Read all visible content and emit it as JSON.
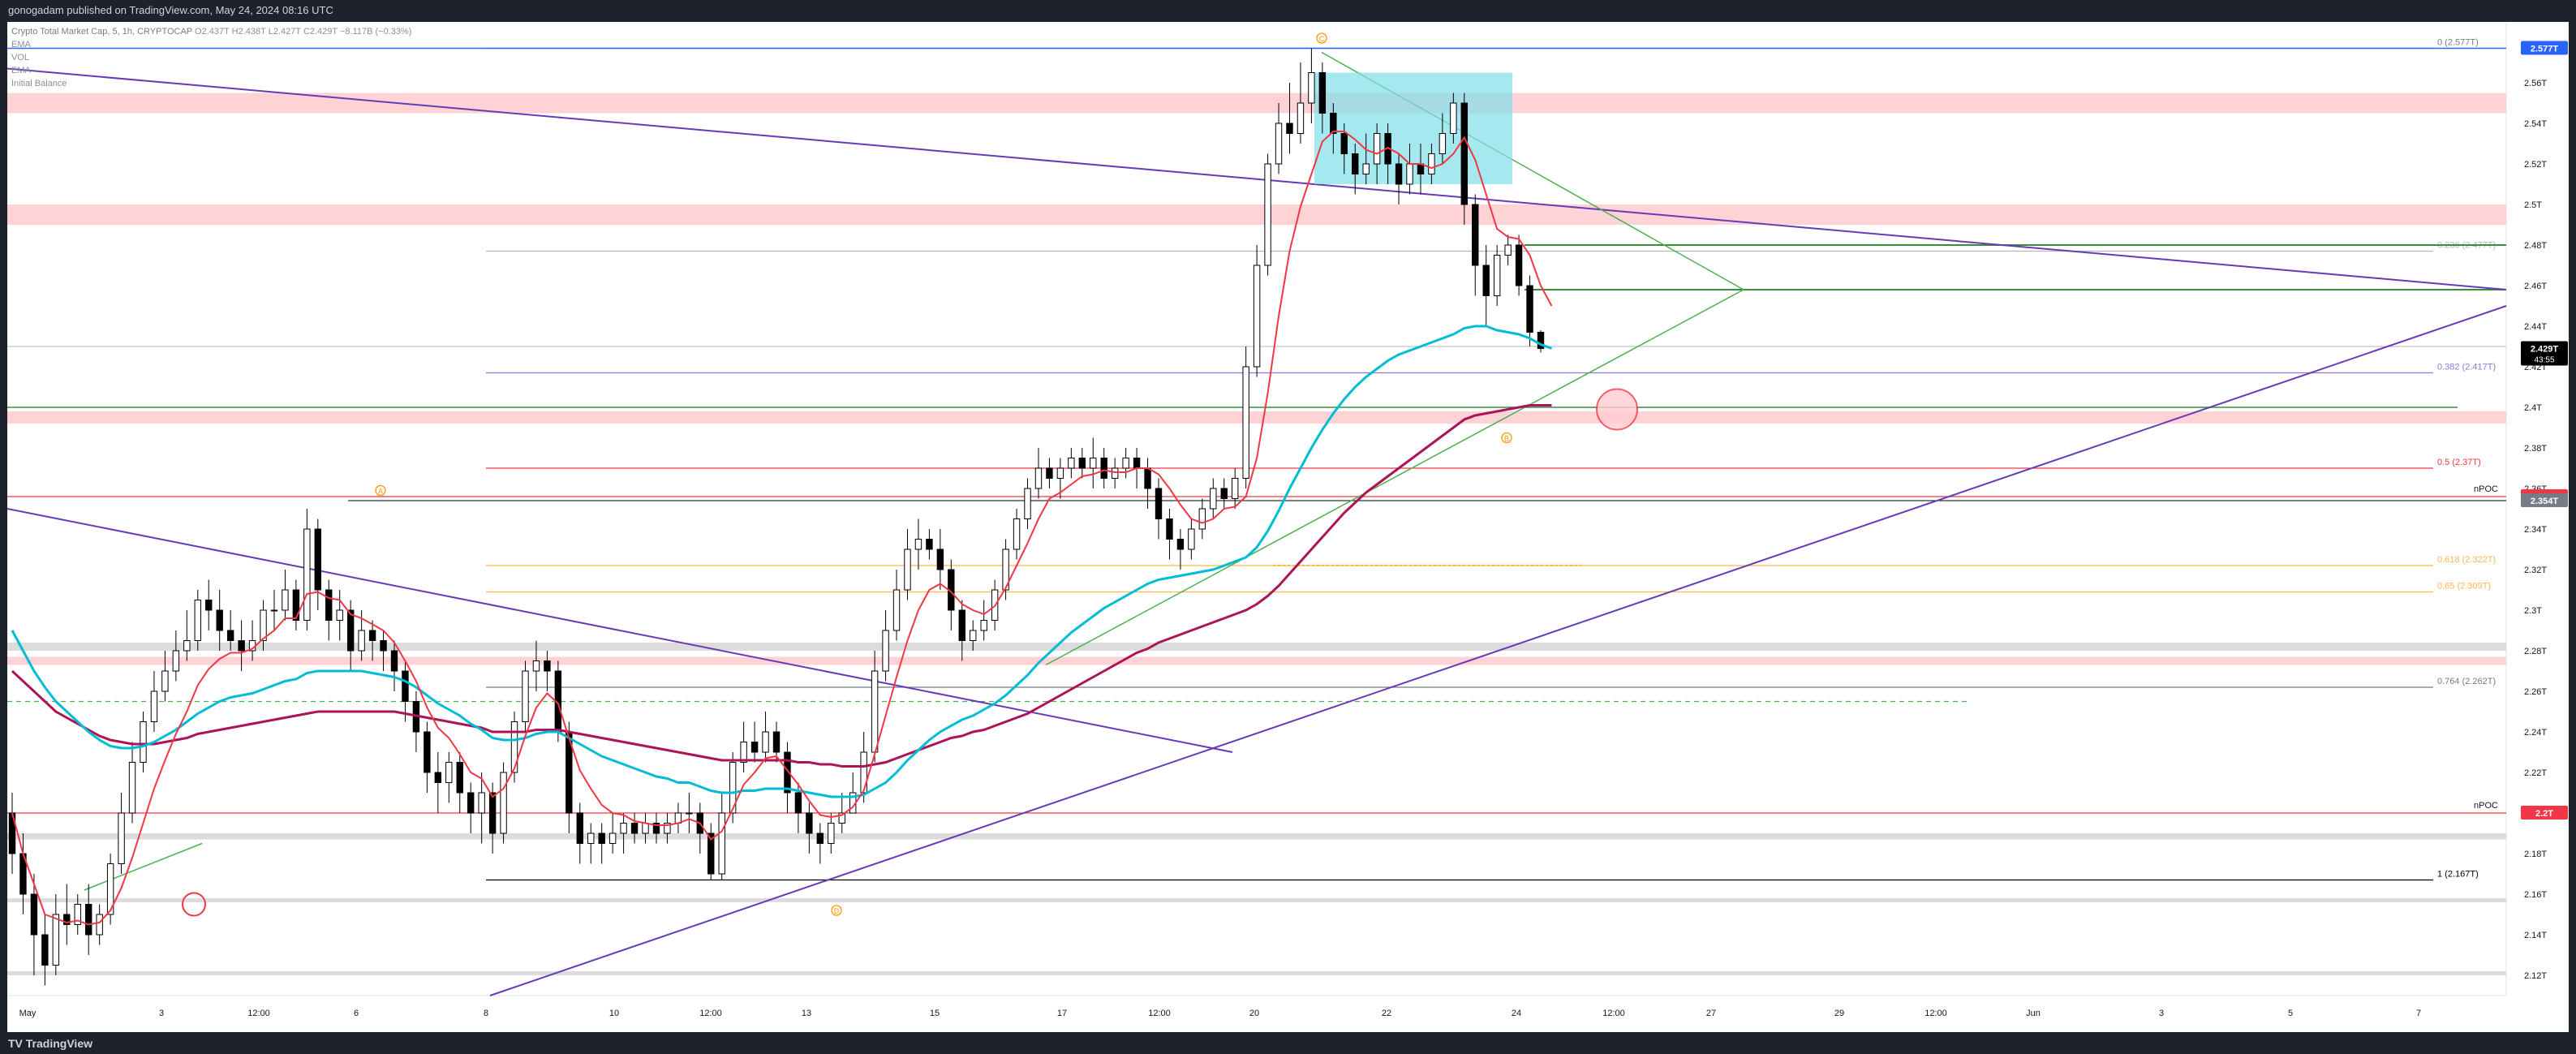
{
  "header": {
    "publish_text": "gonogadam published on TradingView.com, May 24, 2024 08:16 UTC"
  },
  "footer": {
    "brand": "TradingView"
  },
  "legend": {
    "symbol": "Crypto Total Market Cap, 5, 1h, CRYPTOCAP",
    "ohlc": "O2.437T  H2.438T  L2.427T  C2.429T  −8.117B (−0.33%)",
    "indicators": [
      "EMA",
      "VOL",
      "EMA",
      "EMA",
      "Initial Balance"
    ]
  },
  "colors": {
    "up": "#ffffff",
    "down": "#000000",
    "ema_fast": "#f23645",
    "ema_mid": "#00bcd4",
    "ema_slow": "#ad1457",
    "trendline": "#673ab7",
    "channel": "#4caf50",
    "zone_red": "#ffcdd2",
    "zone_grey": "#dcdcdc",
    "box_cyan": "#80deea"
  },
  "chart_data": {
    "type": "candlestick",
    "ylim": [
      2.11,
      2.59
    ],
    "x_ticks": [
      "May",
      "3",
      "12:00",
      "6",
      "8",
      "10",
      "12:00",
      "13",
      "15",
      "17",
      "12:00",
      "20",
      "22",
      "24",
      "12:00",
      "27",
      "29",
      "12:00",
      "Jun",
      "3",
      "5",
      "7"
    ],
    "y_ticks": [
      "2.56T",
      "2.54T",
      "2.52T",
      "2.5T",
      "2.48T",
      "2.46T",
      "2.44T",
      "2.42T",
      "2.4T",
      "2.38T",
      "2.36T",
      "2.34T",
      "2.32T",
      "2.3T",
      "2.28T",
      "2.26T",
      "2.24T",
      "2.22T",
      "2.2T",
      "2.18T",
      "2.16T",
      "2.14T",
      "2.12T"
    ],
    "price_tags": [
      {
        "label": "2.577T",
        "value": 2.577,
        "color": "#2962ff"
      },
      {
        "label": "2.429T",
        "value": 2.429,
        "color": "#000000",
        "sub": "43:55"
      },
      {
        "label": "2.356T",
        "value": 2.356,
        "color": "#f23645"
      },
      {
        "label": "2.354T",
        "value": 2.354,
        "color": "#787b86"
      },
      {
        "label": "2.2T",
        "value": 2.2,
        "color": "#f23645"
      }
    ],
    "fib_levels": [
      {
        "label": "0 (2.577T)",
        "value": 2.577,
        "color": "#787b86"
      },
      {
        "label": "0.236 (2.477T)",
        "value": 2.477,
        "color": "#b2b5be"
      },
      {
        "label": "0.382 (2.417T)",
        "value": 2.417,
        "color": "#9575cd"
      },
      {
        "label": "0.5 (2.37T)",
        "value": 2.37,
        "color": "#f23645"
      },
      {
        "label": "0.618 (2.322T)",
        "value": 2.322,
        "color": "#ffb74d"
      },
      {
        "label": "0.65 (2.309T)",
        "value": 2.309,
        "color": "#ffb74d"
      },
      {
        "label": "0.764 (2.262T)",
        "value": 2.262,
        "color": "#787b86"
      },
      {
        "label": "1 (2.167T)",
        "value": 2.167,
        "color": "#000000"
      }
    ],
    "npoc": [
      {
        "label": "nPOC",
        "value": 2.356
      },
      {
        "label": "nPOC",
        "value": 2.2
      }
    ],
    "zones_red": [
      [
        2.545,
        2.555
      ],
      [
        2.49,
        2.5
      ],
      [
        2.392,
        2.398
      ],
      [
        2.273,
        2.277
      ]
    ],
    "zones_grey": [
      [
        2.28,
        2.284
      ],
      [
        2.187,
        2.19
      ],
      [
        2.156,
        2.158
      ],
      [
        2.12,
        2.122
      ]
    ],
    "wave_labels": [
      "C",
      "A",
      "B",
      "D"
    ],
    "candles": [
      [
        2.2,
        2.18,
        2.21,
        2.17
      ],
      [
        2.18,
        2.16,
        2.19,
        2.15
      ],
      [
        2.16,
        2.14,
        2.17,
        2.12
      ],
      [
        2.14,
        2.125,
        2.15,
        2.115
      ],
      [
        2.125,
        2.15,
        2.16,
        2.12
      ],
      [
        2.15,
        2.145,
        2.165,
        2.135
      ],
      [
        2.145,
        2.155,
        2.16,
        2.14
      ],
      [
        2.155,
        2.14,
        2.165,
        2.13
      ],
      [
        2.14,
        2.15,
        2.155,
        2.135
      ],
      [
        2.15,
        2.175,
        2.18,
        2.145
      ],
      [
        2.175,
        2.2,
        2.21,
        2.17
      ],
      [
        2.2,
        2.225,
        2.235,
        2.195
      ],
      [
        2.225,
        2.245,
        2.25,
        2.22
      ],
      [
        2.245,
        2.26,
        2.27,
        2.24
      ],
      [
        2.26,
        2.27,
        2.28,
        2.255
      ],
      [
        2.27,
        2.28,
        2.29,
        2.265
      ],
      [
        2.28,
        2.285,
        2.3,
        2.275
      ],
      [
        2.285,
        2.305,
        2.31,
        2.28
      ],
      [
        2.305,
        2.3,
        2.315,
        2.29
      ],
      [
        2.3,
        2.29,
        2.31,
        2.28
      ],
      [
        2.29,
        2.285,
        2.3,
        2.28
      ],
      [
        2.285,
        2.28,
        2.295,
        2.27
      ],
      [
        2.28,
        2.285,
        2.295,
        2.275
      ],
      [
        2.285,
        2.3,
        2.305,
        2.28
      ],
      [
        2.3,
        2.3,
        2.31,
        2.29
      ],
      [
        2.3,
        2.31,
        2.32,
        2.295
      ],
      [
        2.31,
        2.295,
        2.315,
        2.29
      ],
      [
        2.295,
        2.34,
        2.35,
        2.29
      ],
      [
        2.34,
        2.31,
        2.345,
        2.3
      ],
      [
        2.31,
        2.295,
        2.315,
        2.285
      ],
      [
        2.295,
        2.3,
        2.31,
        2.285
      ],
      [
        2.3,
        2.28,
        2.305,
        2.27
      ],
      [
        2.28,
        2.29,
        2.3,
        2.275
      ],
      [
        2.29,
        2.285,
        2.295,
        2.275
      ],
      [
        2.285,
        2.28,
        2.29,
        2.27
      ],
      [
        2.28,
        2.27,
        2.285,
        2.26
      ],
      [
        2.27,
        2.255,
        2.275,
        2.245
      ],
      [
        2.255,
        2.24,
        2.26,
        2.23
      ],
      [
        2.24,
        2.22,
        2.245,
        2.21
      ],
      [
        2.22,
        2.215,
        2.23,
        2.2
      ],
      [
        2.215,
        2.225,
        2.23,
        2.205
      ],
      [
        2.225,
        2.21,
        2.23,
        2.2
      ],
      [
        2.21,
        2.2,
        2.215,
        2.19
      ],
      [
        2.2,
        2.21,
        2.22,
        2.185
      ],
      [
        2.21,
        2.19,
        2.215,
        2.18
      ],
      [
        2.19,
        2.22,
        2.225,
        2.185
      ],
      [
        2.22,
        2.245,
        2.25,
        2.215
      ],
      [
        2.245,
        2.27,
        2.275,
        2.24
      ],
      [
        2.27,
        2.275,
        2.285,
        2.26
      ],
      [
        2.275,
        2.27,
        2.28,
        2.26
      ],
      [
        2.27,
        2.24,
        2.275,
        2.235
      ],
      [
        2.24,
        2.2,
        2.245,
        2.19
      ],
      [
        2.2,
        2.185,
        2.205,
        2.175
      ],
      [
        2.185,
        2.19,
        2.195,
        2.175
      ],
      [
        2.19,
        2.185,
        2.195,
        2.175
      ],
      [
        2.185,
        2.19,
        2.2,
        2.18
      ],
      [
        2.19,
        2.195,
        2.2,
        2.18
      ],
      [
        2.195,
        2.19,
        2.2,
        2.185
      ],
      [
        2.19,
        2.195,
        2.2,
        2.185
      ],
      [
        2.195,
        2.19,
        2.2,
        2.185
      ],
      [
        2.19,
        2.195,
        2.2,
        2.185
      ],
      [
        2.195,
        2.2,
        2.205,
        2.19
      ],
      [
        2.2,
        2.2,
        2.21,
        2.19
      ],
      [
        2.2,
        2.19,
        2.205,
        2.18
      ],
      [
        2.19,
        2.17,
        2.195,
        2.167
      ],
      [
        2.17,
        2.2,
        2.21,
        2.167
      ],
      [
        2.2,
        2.225,
        2.23,
        2.195
      ],
      [
        2.225,
        2.235,
        2.245,
        2.22
      ],
      [
        2.235,
        2.23,
        2.245,
        2.225
      ],
      [
        2.23,
        2.24,
        2.25,
        2.225
      ],
      [
        2.24,
        2.23,
        2.245,
        2.225
      ],
      [
        2.23,
        2.21,
        2.235,
        2.2
      ],
      [
        2.21,
        2.2,
        2.215,
        2.19
      ],
      [
        2.2,
        2.19,
        2.205,
        2.18
      ],
      [
        2.19,
        2.185,
        2.195,
        2.175
      ],
      [
        2.185,
        2.195,
        2.2,
        2.18
      ],
      [
        2.195,
        2.2,
        2.21,
        2.19
      ],
      [
        2.2,
        2.21,
        2.22,
        2.2
      ],
      [
        2.21,
        2.23,
        2.24,
        2.205
      ],
      [
        2.23,
        2.27,
        2.28,
        2.225
      ],
      [
        2.27,
        2.29,
        2.3,
        2.265
      ],
      [
        2.29,
        2.31,
        2.32,
        2.285
      ],
      [
        2.31,
        2.33,
        2.34,
        2.305
      ],
      [
        2.33,
        2.335,
        2.345,
        2.32
      ],
      [
        2.335,
        2.33,
        2.34,
        2.325
      ],
      [
        2.33,
        2.32,
        2.34,
        2.31
      ],
      [
        2.32,
        2.3,
        2.325,
        2.29
      ],
      [
        2.3,
        2.285,
        2.305,
        2.275
      ],
      [
        2.285,
        2.29,
        2.295,
        2.28
      ],
      [
        2.29,
        2.295,
        2.305,
        2.285
      ],
      [
        2.295,
        2.31,
        2.315,
        2.29
      ],
      [
        2.31,
        2.33,
        2.335,
        2.305
      ],
      [
        2.33,
        2.345,
        2.35,
        2.325
      ],
      [
        2.345,
        2.36,
        2.365,
        2.34
      ],
      [
        2.36,
        2.37,
        2.38,
        2.355
      ],
      [
        2.37,
        2.365,
        2.375,
        2.36
      ],
      [
        2.365,
        2.37,
        2.375,
        2.355
      ],
      [
        2.37,
        2.375,
        2.38,
        2.365
      ],
      [
        2.375,
        2.37,
        2.38,
        2.365
      ],
      [
        2.37,
        2.375,
        2.385,
        2.36
      ],
      [
        2.375,
        2.365,
        2.38,
        2.36
      ],
      [
        2.365,
        2.37,
        2.375,
        2.36
      ],
      [
        2.37,
        2.375,
        2.38,
        2.365
      ],
      [
        2.375,
        2.37,
        2.38,
        2.36
      ],
      [
        2.37,
        2.36,
        2.375,
        2.35
      ],
      [
        2.36,
        2.345,
        2.365,
        2.335
      ],
      [
        2.345,
        2.335,
        2.35,
        2.325
      ],
      [
        2.335,
        2.33,
        2.34,
        2.32
      ],
      [
        2.33,
        2.34,
        2.345,
        2.325
      ],
      [
        2.34,
        2.35,
        2.355,
        2.335
      ],
      [
        2.35,
        2.36,
        2.365,
        2.345
      ],
      [
        2.36,
        2.355,
        2.365,
        2.35
      ],
      [
        2.355,
        2.365,
        2.37,
        2.35
      ],
      [
        2.365,
        2.42,
        2.43,
        2.36
      ],
      [
        2.42,
        2.47,
        2.48,
        2.415
      ],
      [
        2.47,
        2.52,
        2.525,
        2.465
      ],
      [
        2.52,
        2.54,
        2.55,
        2.515
      ],
      [
        2.54,
        2.535,
        2.56,
        2.525
      ],
      [
        2.535,
        2.55,
        2.57,
        2.53
      ],
      [
        2.55,
        2.565,
        2.577,
        2.54
      ],
      [
        2.565,
        2.545,
        2.57,
        2.535
      ],
      [
        2.545,
        2.535,
        2.55,
        2.525
      ],
      [
        2.535,
        2.525,
        2.54,
        2.515
      ],
      [
        2.525,
        2.515,
        2.53,
        2.505
      ],
      [
        2.515,
        2.52,
        2.535,
        2.51
      ],
      [
        2.52,
        2.535,
        2.54,
        2.51
      ],
      [
        2.535,
        2.52,
        2.54,
        2.51
      ],
      [
        2.52,
        2.51,
        2.525,
        2.5
      ],
      [
        2.51,
        2.52,
        2.53,
        2.505
      ],
      [
        2.52,
        2.515,
        2.53,
        2.505
      ],
      [
        2.515,
        2.525,
        2.53,
        2.51
      ],
      [
        2.525,
        2.535,
        2.545,
        2.52
      ],
      [
        2.535,
        2.55,
        2.555,
        2.53
      ],
      [
        2.55,
        2.5,
        2.555,
        2.49
      ],
      [
        2.5,
        2.47,
        2.505,
        2.455
      ],
      [
        2.47,
        2.455,
        2.48,
        2.44
      ],
      [
        2.455,
        2.475,
        2.48,
        2.45
      ],
      [
        2.475,
        2.48,
        2.485,
        2.47
      ],
      [
        2.48,
        2.46,
        2.485,
        2.455
      ],
      [
        2.46,
        2.437,
        2.465,
        2.43
      ],
      [
        2.437,
        2.429,
        2.438,
        2.427
      ]
    ],
    "ema_fast": [
      2.2,
      2.18,
      2.165,
      2.15,
      2.148,
      2.146,
      2.147,
      2.145,
      2.146,
      2.152,
      2.163,
      2.178,
      2.195,
      2.212,
      2.226,
      2.239,
      2.25,
      2.263,
      2.271,
      2.276,
      2.279,
      2.279,
      2.281,
      2.286,
      2.29,
      2.296,
      2.296,
      2.308,
      2.309,
      2.306,
      2.305,
      2.298,
      2.296,
      2.293,
      2.29,
      2.284,
      2.275,
      2.265,
      2.252,
      2.242,
      2.237,
      2.229,
      2.22,
      2.217,
      2.208,
      2.212,
      2.222,
      2.238,
      2.252,
      2.259,
      2.254,
      2.237,
      2.221,
      2.212,
      2.204,
      2.2,
      2.199,
      2.196,
      2.195,
      2.194,
      2.194,
      2.195,
      2.197,
      2.195,
      2.187,
      2.191,
      2.202,
      2.214,
      2.22,
      2.227,
      2.228,
      2.221,
      2.214,
      2.206,
      2.199,
      2.198,
      2.199,
      2.203,
      2.211,
      2.229,
      2.248,
      2.267,
      2.285,
      2.3,
      2.31,
      2.313,
      2.309,
      2.303,
      2.3,
      2.298,
      2.302,
      2.311,
      2.322,
      2.333,
      2.345,
      2.355,
      2.358,
      2.362,
      2.366,
      2.367,
      2.369,
      2.368,
      2.368,
      2.37,
      2.37,
      2.367,
      2.36,
      2.352,
      2.345,
      2.343,
      2.345,
      2.35,
      2.351,
      2.356,
      2.375,
      2.407,
      2.445,
      2.477,
      2.499,
      2.515,
      2.531,
      2.536,
      2.536,
      2.532,
      2.527,
      2.525,
      2.528,
      2.525,
      2.52,
      2.52,
      2.518,
      2.52,
      2.525,
      2.533,
      2.522,
      2.505,
      2.488,
      2.484,
      2.483,
      2.475,
      2.46,
      2.45
    ],
    "ema_mid": [
      2.29,
      2.28,
      2.27,
      2.262,
      2.255,
      2.25,
      2.245,
      2.24,
      2.236,
      2.233,
      2.232,
      2.232,
      2.233,
      2.235,
      2.238,
      2.241,
      2.245,
      2.249,
      2.252,
      2.255,
      2.257,
      2.258,
      2.259,
      2.261,
      2.263,
      2.265,
      2.266,
      2.269,
      2.27,
      2.27,
      2.27,
      2.27,
      2.27,
      2.269,
      2.268,
      2.267,
      2.265,
      2.262,
      2.258,
      2.254,
      2.251,
      2.248,
      2.244,
      2.241,
      2.237,
      2.236,
      2.236,
      2.237,
      2.239,
      2.24,
      2.24,
      2.237,
      2.234,
      2.231,
      2.228,
      2.226,
      2.224,
      2.222,
      2.22,
      2.218,
      2.217,
      2.215,
      2.215,
      2.213,
      2.211,
      2.21,
      2.21,
      2.211,
      2.211,
      2.212,
      2.212,
      2.212,
      2.211,
      2.21,
      2.209,
      2.208,
      2.208,
      2.208,
      2.209,
      2.212,
      2.215,
      2.22,
      2.226,
      2.231,
      2.236,
      2.24,
      2.243,
      2.246,
      2.248,
      2.251,
      2.254,
      2.258,
      2.263,
      2.268,
      2.274,
      2.279,
      2.284,
      2.289,
      2.293,
      2.297,
      2.301,
      2.304,
      2.307,
      2.31,
      2.313,
      2.315,
      2.316,
      2.317,
      2.318,
      2.319,
      2.32,
      2.322,
      2.324,
      2.326,
      2.331,
      2.339,
      2.349,
      2.36,
      2.37,
      2.38,
      2.389,
      2.397,
      2.404,
      2.41,
      2.415,
      2.419,
      2.423,
      2.426,
      2.428,
      2.43,
      2.432,
      2.434,
      2.436,
      2.439,
      2.44,
      2.44,
      2.438,
      2.437,
      2.436,
      2.434,
      2.431,
      2.429
    ],
    "ema_slow": [
      2.27,
      2.265,
      2.26,
      2.255,
      2.25,
      2.247,
      2.244,
      2.241,
      2.238,
      2.236,
      2.235,
      2.234,
      2.234,
      2.234,
      2.235,
      2.236,
      2.237,
      2.239,
      2.24,
      2.241,
      2.242,
      2.243,
      2.244,
      2.245,
      2.246,
      2.247,
      2.248,
      2.249,
      2.25,
      2.25,
      2.25,
      2.25,
      2.25,
      2.25,
      2.25,
      2.25,
      2.249,
      2.248,
      2.247,
      2.246,
      2.245,
      2.244,
      2.243,
      2.242,
      2.24,
      2.24,
      2.24,
      2.24,
      2.241,
      2.241,
      2.241,
      2.24,
      2.239,
      2.238,
      2.237,
      2.236,
      2.235,
      2.234,
      2.233,
      2.232,
      2.231,
      2.23,
      2.229,
      2.228,
      2.227,
      2.226,
      2.226,
      2.226,
      2.226,
      2.226,
      2.226,
      2.226,
      2.225,
      2.225,
      2.224,
      2.224,
      2.223,
      2.223,
      2.223,
      2.224,
      2.225,
      2.227,
      2.229,
      2.231,
      2.233,
      2.235,
      2.237,
      2.238,
      2.24,
      2.241,
      2.243,
      2.245,
      2.247,
      2.249,
      2.252,
      2.255,
      2.258,
      2.261,
      2.264,
      2.267,
      2.27,
      2.273,
      2.276,
      2.279,
      2.281,
      2.284,
      2.286,
      2.288,
      2.29,
      2.292,
      2.294,
      2.296,
      2.298,
      2.3,
      2.303,
      2.307,
      2.312,
      2.318,
      2.324,
      2.33,
      2.336,
      2.342,
      2.348,
      2.353,
      2.358,
      2.362,
      2.366,
      2.37,
      2.374,
      2.378,
      2.382,
      2.386,
      2.39,
      2.394,
      2.396,
      2.397,
      2.398,
      2.399,
      2.4,
      2.401,
      2.401,
      2.401
    ]
  }
}
